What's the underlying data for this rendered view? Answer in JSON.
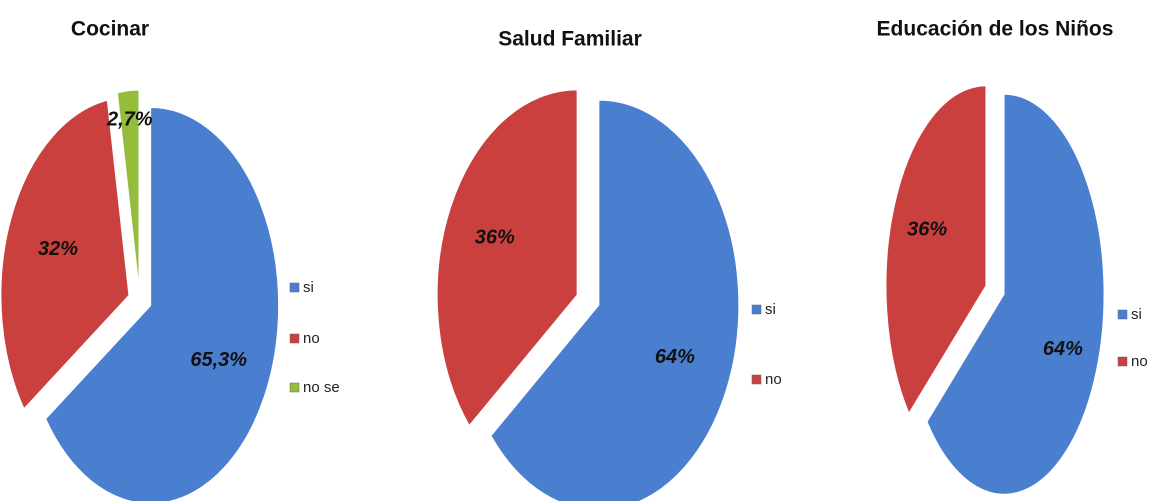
{
  "chart_data": [
    {
      "type": "pie",
      "title": "Cocinar",
      "categories": [
        "si",
        "no",
        "no se"
      ],
      "values": [
        65.3,
        32,
        2.7
      ],
      "value_labels": [
        "65,3%",
        "32%",
        "2,7%"
      ],
      "colors": [
        "#4a7fd0",
        "#c9403f",
        "#94bd3c"
      ]
    },
    {
      "type": "pie",
      "title": "Salud Familiar",
      "categories": [
        "si",
        "no"
      ],
      "values": [
        64,
        36
      ],
      "value_labels": [
        "64%",
        "36%"
      ],
      "colors": [
        "#4a7fd0",
        "#c9403f"
      ]
    },
    {
      "type": "pie",
      "title": "Educación de los Niños",
      "categories": [
        "si",
        "no"
      ],
      "values": [
        64,
        36
      ],
      "value_labels": [
        "64%",
        "36%"
      ],
      "colors": [
        "#4a7fd0",
        "#c9403f"
      ]
    }
  ]
}
